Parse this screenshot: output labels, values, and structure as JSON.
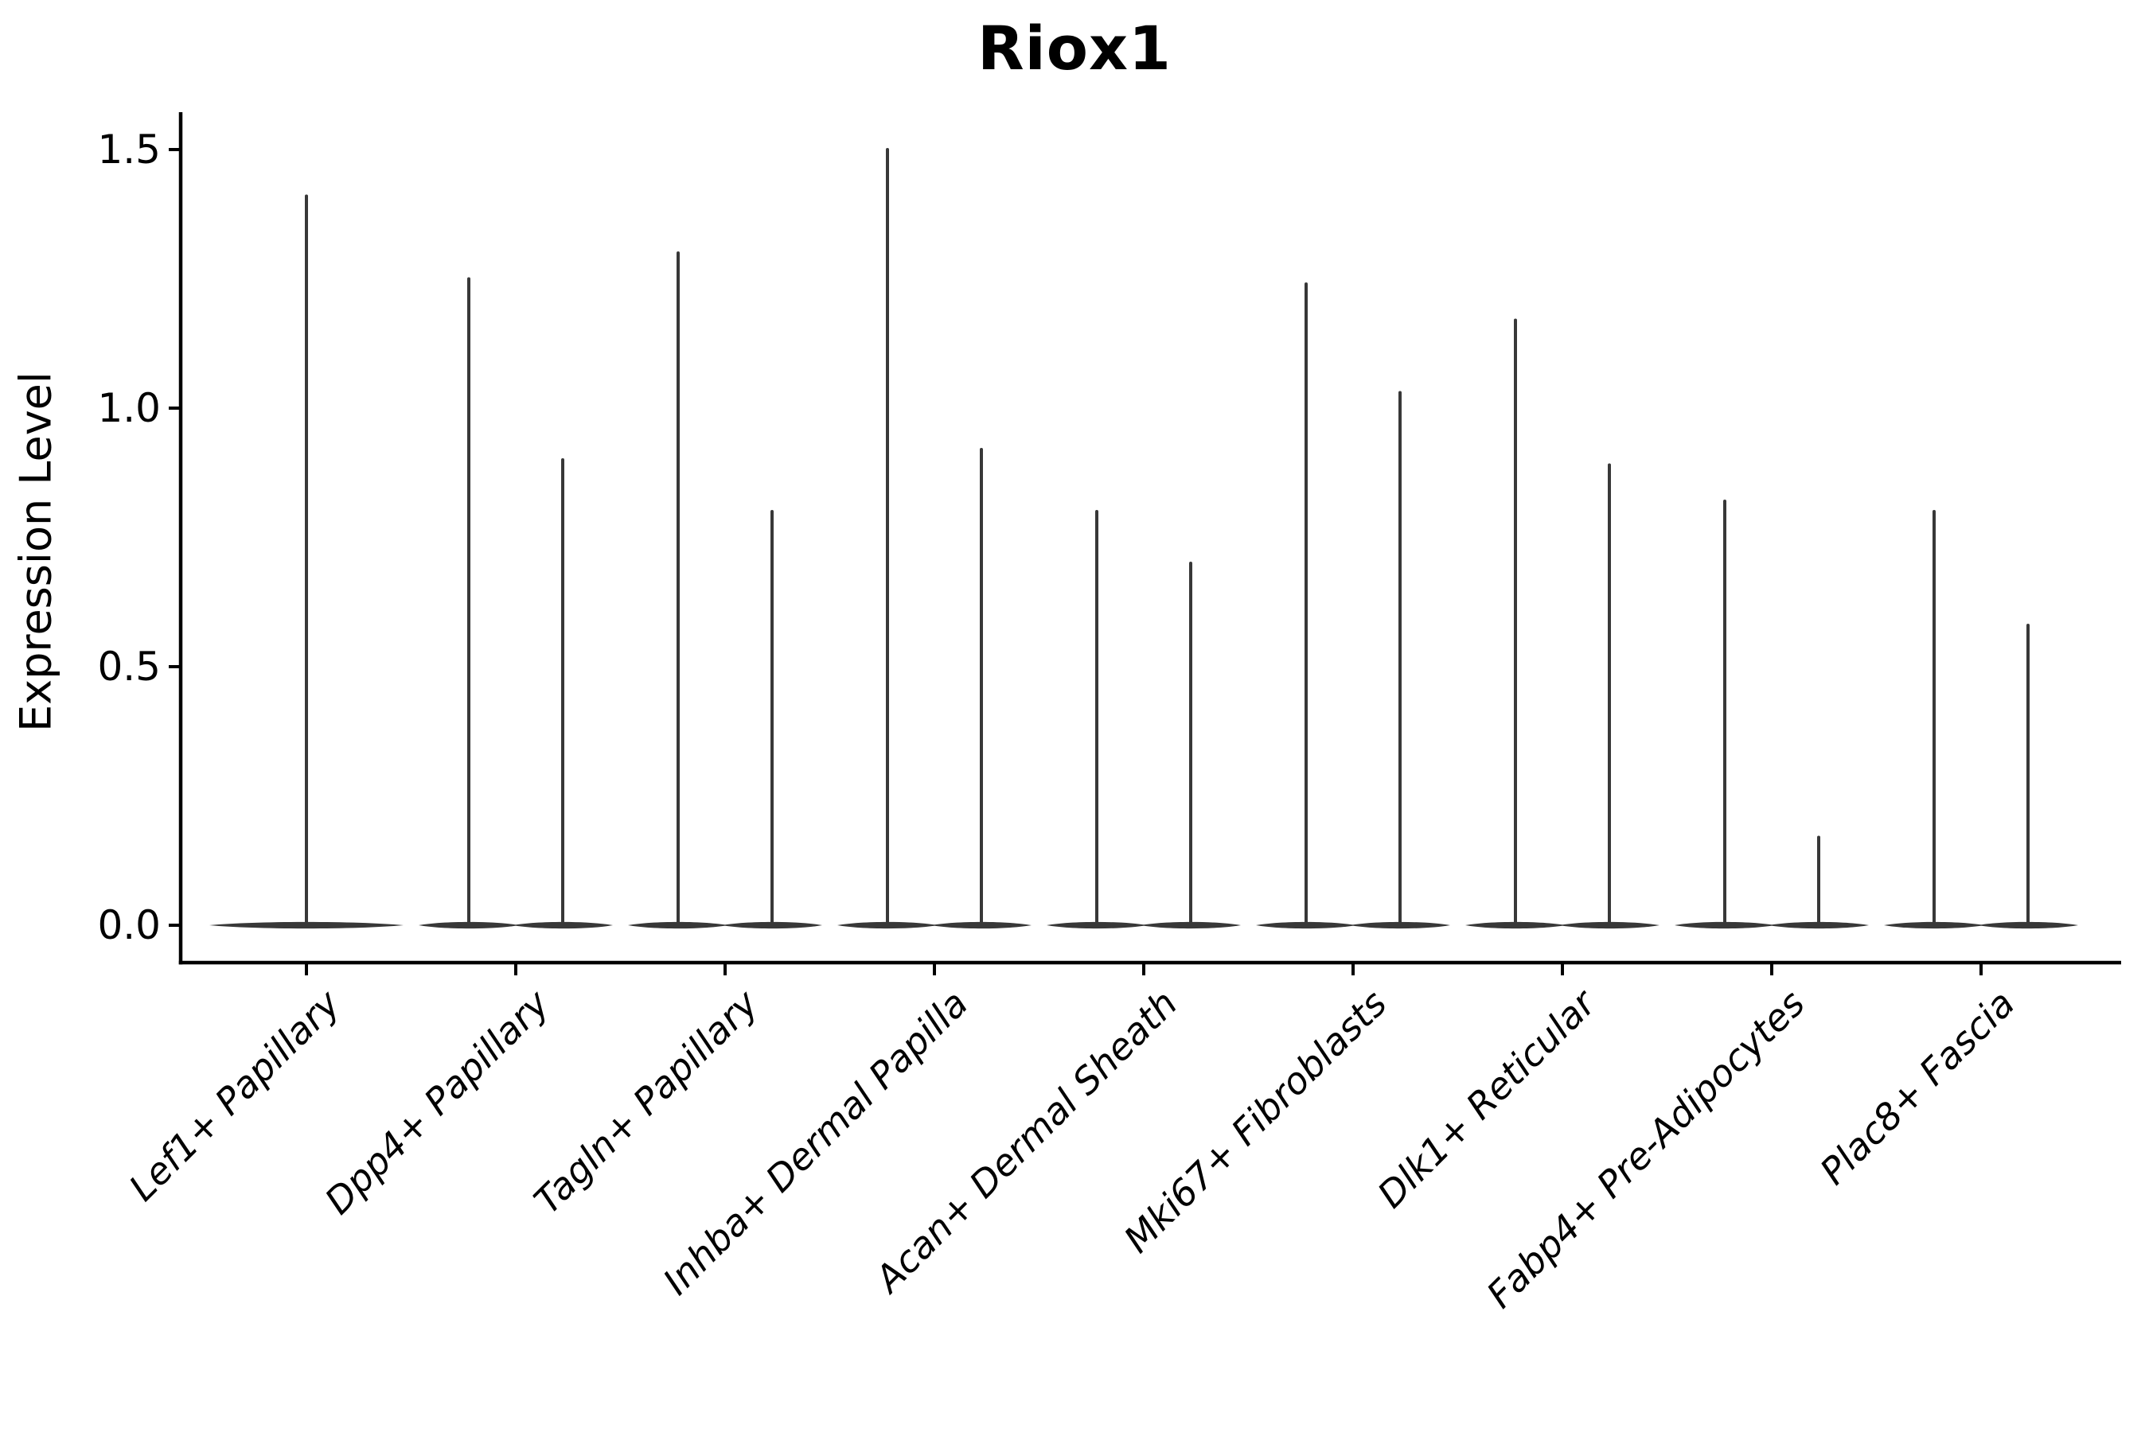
{
  "chart_data": {
    "type": "violin",
    "title": "Riox1",
    "ylabel": "Expression Level",
    "xlabel": "",
    "background_color": "#ffffff",
    "violin_color": "#383838",
    "axis_color": "#000000",
    "grid": false,
    "legend": false,
    "ylim": [
      -0.07,
      1.57
    ],
    "yticks": [
      {
        "value": 0.0,
        "label": "0.0"
      },
      {
        "value": 0.5,
        "label": "0.5"
      },
      {
        "value": 1.0,
        "label": "1.0"
      },
      {
        "value": 1.5,
        "label": "1.5"
      }
    ],
    "baseline_value": 0.0,
    "categories": [
      "Lef1+ Papillary",
      "Dpp4+ Papillary",
      "Tagln+ Papillary",
      "Inhba+ Dermal Papilla",
      "Acan+ Dermal Sheath",
      "Mki67+ Fibroblasts",
      "Dlk1+ Reticular",
      "Fabp4+ Pre-Adipocytes",
      "Plac8+ Fascia"
    ],
    "violins": [
      {
        "category": "Lef1+ Papillary",
        "spike_maxima": [
          1.41
        ]
      },
      {
        "category": "Dpp4+ Papillary",
        "spike_maxima": [
          1.25,
          0.9
        ]
      },
      {
        "category": "Tagln+ Papillary",
        "spike_maxima": [
          1.3,
          0.8
        ]
      },
      {
        "category": "Inhba+ Dermal Papilla",
        "spike_maxima": [
          1.5,
          0.92
        ]
      },
      {
        "category": "Acan+ Dermal Sheath",
        "spike_maxima": [
          0.8,
          0.7
        ]
      },
      {
        "category": "Mki67+ Fibroblasts",
        "spike_maxima": [
          1.24,
          1.03
        ]
      },
      {
        "category": "Dlk1+ Reticular",
        "spike_maxima": [
          1.17,
          0.89
        ]
      },
      {
        "category": "Fabp4+ Pre-Adipocytes",
        "spike_maxima": [
          0.82,
          0.17
        ]
      },
      {
        "category": "Plac8+ Fascia",
        "spike_maxima": [
          0.8,
          0.58
        ]
      }
    ]
  }
}
